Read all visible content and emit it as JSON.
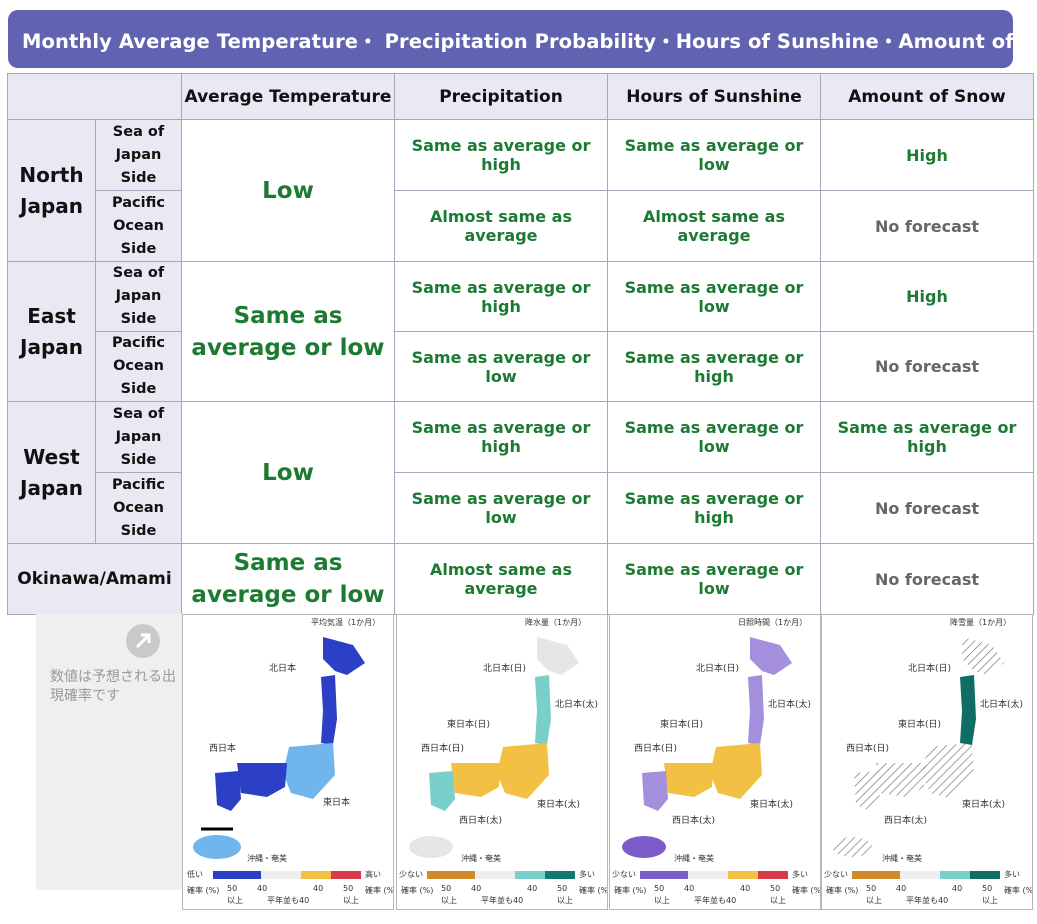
{
  "banner": {
    "title": "Monthly Average Temperature・ Precipitation Probability・Hours of Sunshine・Amount of Snow"
  },
  "table": {
    "headers": [
      "Average Temperature",
      "Precipitation",
      "Hours of Sunshine",
      "Amount of Snow"
    ],
    "regions": {
      "north": "North Japan",
      "east": "East Japan",
      "west": "West Japan",
      "okinawa": "Okinawa/Amami"
    },
    "sides": {
      "sea": "Sea of Japan Side",
      "pacific": "Pacific Ocean Side"
    },
    "temperature": {
      "north": "Low",
      "east": "Same as average or low",
      "west": "Low",
      "okinawa": "Same as average or low"
    },
    "rows": {
      "north_sea": {
        "precipitation": "Same as average or high",
        "sunshine": "Same as average or low",
        "snow": "High"
      },
      "north_pacific": {
        "precipitation": "Almost same as average",
        "sunshine": "Almost same as average",
        "snow": "No forecast"
      },
      "east_sea": {
        "precipitation": "Same as average or high",
        "sunshine": "Same as average or low",
        "snow": "High"
      },
      "east_pacific": {
        "precipitation": "Same as average or low",
        "sunshine": "Same as average or high",
        "snow": "No forecast"
      },
      "west_sea": {
        "precipitation": "Same as average or high",
        "sunshine": "Same as average or low",
        "snow": "Same as average or high"
      },
      "west_pacific": {
        "precipitation": "Same as average or low",
        "sunshine": "Same as average or high",
        "snow": "No forecast"
      },
      "okinawa": {
        "precipitation": "Almost same as average",
        "sunshine": "Same as average or low",
        "snow": "No forecast"
      }
    }
  },
  "note": {
    "text": "数値は予想される出現確率です",
    "icon": "arrow-up-right-icon"
  },
  "maps": [
    {
      "title": "平均気温（1か月）",
      "labels": {
        "north": "北日本",
        "east": "東日本",
        "west": "西日本",
        "okinawa": "沖縄・奄美"
      },
      "legend": {
        "left": "低い",
        "right": "高い",
        "prob": "確率 (%)",
        "n1": "50",
        "n2": "40",
        "n3": "40",
        "n4": "50",
        "ijo": "以上",
        "mid": "平年並も40"
      },
      "colors": {
        "main": "#2b3fc7",
        "second": "#6fb6ee",
        "low": "#2b3fc7",
        "high": "#d83a4a",
        "mid": "#eeeeee",
        "warm": "#f2c043"
      }
    },
    {
      "title": "降水量（1か月）",
      "labels": {
        "north": "北日本(日)",
        "north2": "北日本(太)",
        "east": "東日本(日)",
        "east2": "東日本(太)",
        "west": "西日本(日)",
        "west2": "西日本(太)",
        "okinawa": "沖縄・奄美"
      },
      "legend": {
        "left": "少ない",
        "right": "多い",
        "prob": "確率 (%)",
        "n1": "50",
        "n2": "40",
        "n3": "40",
        "n4": "50",
        "ijo": "以上",
        "mid": "平年並も40"
      },
      "colors": {
        "main": "#79cfc9",
        "second": "#f2c043",
        "low": "#d08a2c",
        "high": "#107a70",
        "mid": "#eeeeee",
        "warm": "#f2c043"
      }
    },
    {
      "title": "日照時間（1か月）",
      "labels": {
        "north": "北日本(日)",
        "north2": "北日本(太)",
        "east": "東日本(日)",
        "east2": "東日本(太)",
        "west": "西日本(日)",
        "west2": "西日本(太)",
        "okinawa": "沖縄・奄美"
      },
      "legend": {
        "left": "少ない",
        "right": "多い",
        "prob": "確率 (%)",
        "n1": "50",
        "n2": "40",
        "n3": "40",
        "n4": "50",
        "ijo": "以上",
        "mid": "平年並も40"
      },
      "colors": {
        "main": "#a48fdc",
        "second": "#f2c043",
        "low": "#7b5cc9",
        "high": "#d83a4a",
        "mid": "#eeeeee",
        "warm": "#f2c043"
      }
    },
    {
      "title": "降雪量（1か月）",
      "labels": {
        "north": "北日本(日)",
        "north2": "北日本(太)",
        "east": "東日本(日)",
        "east2": "東日本(太)",
        "west": "西日本(日)",
        "west2": "西日本(太)",
        "okinawa": "沖縄・奄美"
      },
      "legend": {
        "left": "少ない",
        "right": "多い",
        "prob": "確率 (%)",
        "n1": "50",
        "n2": "40",
        "n3": "40",
        "n4": "50",
        "ijo": "以上",
        "mid": "平年並も40"
      },
      "colors": {
        "main": "#0e6e66",
        "second": "#dddddd",
        "low": "#d08a2c",
        "high": "#0e6e66",
        "mid": "#eeeeee",
        "warm": "#79cfc9"
      }
    }
  ]
}
